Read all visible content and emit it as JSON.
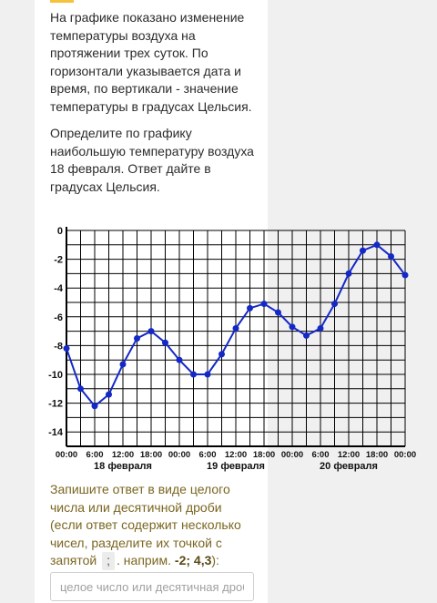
{
  "task": {
    "paragraph_1": "На графике показано изменение температуры воздуха на протяжении трех суток. По горизонтали указывается дата и время, по вертикали - значение температуры в градусах Цельсия.",
    "paragraph_2": "Определите по графику наибольшую температуру воздуха 18 февраля. Ответ дайте в градусах Цельсия."
  },
  "answer": {
    "instruction_main": "Запишите ответ в виде целого числа или десятичной дроби (если ответ содержит несколько чисел, разделите их точкой с запятой",
    "separator": ";",
    "instruction_tail": ". наприм.",
    "example": "-2; 4,3",
    "instruction_end": "):",
    "placeholder": "целое число или десятичная дробь"
  },
  "chart_data": {
    "type": "line",
    "title": "",
    "xlabel": "",
    "ylabel": "",
    "ylim": [
      -15,
      0
    ],
    "y_ticks": [
      "0",
      "-2",
      "-4",
      "-6",
      "-8",
      "-10",
      "-12",
      "-14"
    ],
    "x_tick_labels": [
      "00:00",
      "6:00",
      "12:00",
      "18:00",
      "00:00",
      "6:00",
      "12:00",
      "18:00",
      "00:00",
      "6:00",
      "12:00",
      "18:00",
      "00:00"
    ],
    "date_labels": [
      "18 февраля",
      "19 февраля",
      "20 февраля"
    ],
    "grid": true,
    "line_color": "#1428c8",
    "x_hours": [
      0,
      3,
      6,
      9,
      12,
      15,
      18,
      21,
      24,
      27,
      30,
      33,
      36,
      39,
      42,
      45,
      48,
      51,
      54,
      57,
      60,
      63,
      66,
      69,
      72
    ],
    "values": [
      -8.2,
      -11,
      -12.2,
      -11.4,
      -9.3,
      -7.5,
      -7,
      -7.8,
      -9,
      -10,
      -10,
      -8.6,
      -6.8,
      -5.4,
      -5.1,
      -5.7,
      -6.7,
      -7.3,
      -6.8,
      -5.1,
      -3,
      -1.4,
      -1,
      -1.8,
      -3.1
    ]
  }
}
